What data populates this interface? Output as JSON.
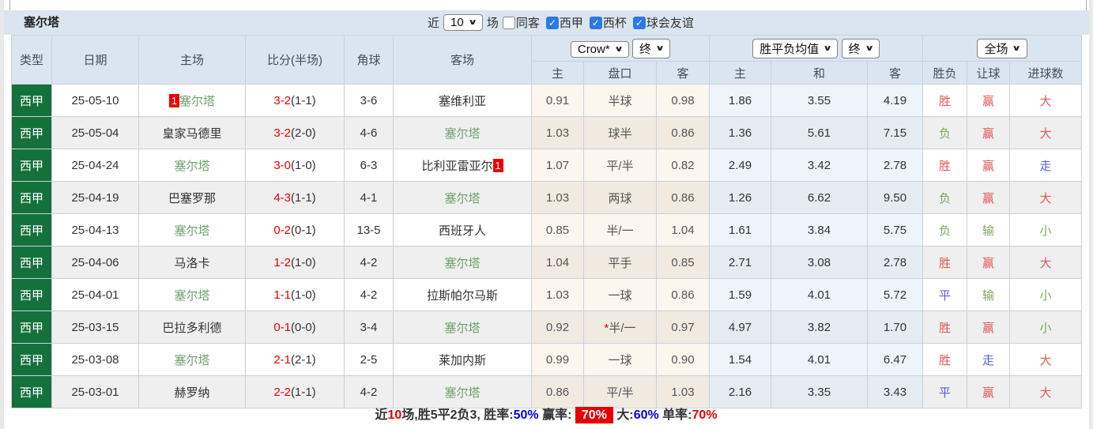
{
  "title": "塞尔塔",
  "controls": {
    "recent_label": "近",
    "recent_count": "10",
    "games_label": "场",
    "checkboxes": [
      {
        "label": "同客",
        "checked": false
      },
      {
        "label": "西甲",
        "checked": true
      },
      {
        "label": "西杯",
        "checked": true
      },
      {
        "label": "球会友谊",
        "checked": true
      }
    ]
  },
  "colors": {
    "league_badge_green": "#15713b",
    "self_team_green": "#6fa06f",
    "score_red": "#e60000",
    "result_red": "#e25757",
    "result_green": "#7da55e",
    "result_blue": "#5b5be4",
    "checkbox_blue": "#2b7ae0",
    "header_bg": "#dbe5ef",
    "handicap_col_bg": "#fbf6ee",
    "europe_col_bg": "#eef5fa"
  },
  "table": {
    "main_headers": [
      "类型",
      "日期",
      "主场",
      "比分(半场)",
      "角球",
      "客场"
    ],
    "selects": {
      "odds_company": "Crow*",
      "odds_time": "终",
      "europe_company": "胜平负均值",
      "europe_time": "终",
      "scope": "全场"
    },
    "sub_headers": [
      "主",
      "盘口",
      "客",
      "主",
      "和",
      "客",
      "胜负",
      "让球",
      "进球数"
    ],
    "rows": [
      {
        "league": "西甲",
        "date": "25-05-10",
        "home": {
          "name": "塞尔塔",
          "is_self": true,
          "badge": "1",
          "badge_pos": "before"
        },
        "score": {
          "full": "3-2",
          "half": "(1-1)"
        },
        "corners": "3-6",
        "away": {
          "name": "塞维利亚",
          "is_self": false
        },
        "odds": {
          "home": "0.91",
          "handicap": "半球",
          "star": false,
          "away": "0.98"
        },
        "europe": {
          "home": "1.86",
          "draw": "3.55",
          "away": "4.19"
        },
        "results": {
          "outcome": {
            "text": "胜",
            "color": "red"
          },
          "handicap": {
            "text": "赢",
            "color": "red"
          },
          "goals": {
            "text": "大",
            "color": "red"
          }
        }
      },
      {
        "league": "西甲",
        "date": "25-05-04",
        "home": {
          "name": "皇家马德里",
          "is_self": false
        },
        "score": {
          "full": "3-2",
          "half": "(2-0)"
        },
        "corners": "4-6",
        "away": {
          "name": "塞尔塔",
          "is_self": true
        },
        "odds": {
          "home": "1.03",
          "handicap": "球半",
          "star": false,
          "away": "0.86"
        },
        "europe": {
          "home": "1.36",
          "draw": "5.61",
          "away": "7.15"
        },
        "results": {
          "outcome": {
            "text": "负",
            "color": "green"
          },
          "handicap": {
            "text": "赢",
            "color": "red"
          },
          "goals": {
            "text": "大",
            "color": "red"
          }
        }
      },
      {
        "league": "西甲",
        "date": "25-04-24",
        "home": {
          "name": "塞尔塔",
          "is_self": true
        },
        "score": {
          "full": "3-0",
          "half": "(1-0)"
        },
        "corners": "6-3",
        "away": {
          "name": "比利亚雷亚尔",
          "is_self": false,
          "badge": "1",
          "badge_pos": "after"
        },
        "odds": {
          "home": "1.07",
          "handicap": "平/半",
          "star": false,
          "away": "0.82"
        },
        "europe": {
          "home": "2.49",
          "draw": "3.42",
          "away": "2.78"
        },
        "results": {
          "outcome": {
            "text": "胜",
            "color": "red"
          },
          "handicap": {
            "text": "赢",
            "color": "red"
          },
          "goals": {
            "text": "走",
            "color": "blue"
          }
        }
      },
      {
        "league": "西甲",
        "date": "25-04-19",
        "home": {
          "name": "巴塞罗那",
          "is_self": false
        },
        "score": {
          "full": "4-3",
          "half": "(1-1)"
        },
        "corners": "4-1",
        "away": {
          "name": "塞尔塔",
          "is_self": true
        },
        "odds": {
          "home": "1.03",
          "handicap": "两球",
          "star": false,
          "away": "0.86"
        },
        "europe": {
          "home": "1.26",
          "draw": "6.62",
          "away": "9.50"
        },
        "results": {
          "outcome": {
            "text": "负",
            "color": "green"
          },
          "handicap": {
            "text": "赢",
            "color": "red"
          },
          "goals": {
            "text": "大",
            "color": "red"
          }
        }
      },
      {
        "league": "西甲",
        "date": "25-04-13",
        "home": {
          "name": "塞尔塔",
          "is_self": true
        },
        "score": {
          "full": "0-2",
          "half": "(0-1)"
        },
        "corners": "13-5",
        "away": {
          "name": "西班牙人",
          "is_self": false
        },
        "odds": {
          "home": "0.85",
          "handicap": "半/一",
          "star": false,
          "away": "1.04"
        },
        "europe": {
          "home": "1.61",
          "draw": "3.84",
          "away": "5.75"
        },
        "results": {
          "outcome": {
            "text": "负",
            "color": "green"
          },
          "handicap": {
            "text": "输",
            "color": "green"
          },
          "goals": {
            "text": "小",
            "color": "green"
          }
        }
      },
      {
        "league": "西甲",
        "date": "25-04-06",
        "home": {
          "name": "马洛卡",
          "is_self": false
        },
        "score": {
          "full": "1-2",
          "half": "(1-0)"
        },
        "corners": "4-2",
        "away": {
          "name": "塞尔塔",
          "is_self": true
        },
        "odds": {
          "home": "1.04",
          "handicap": "平手",
          "star": false,
          "away": "0.85"
        },
        "europe": {
          "home": "2.71",
          "draw": "3.08",
          "away": "2.78"
        },
        "results": {
          "outcome": {
            "text": "胜",
            "color": "red"
          },
          "handicap": {
            "text": "赢",
            "color": "red"
          },
          "goals": {
            "text": "大",
            "color": "red"
          }
        }
      },
      {
        "league": "西甲",
        "date": "25-04-01",
        "home": {
          "name": "塞尔塔",
          "is_self": true
        },
        "score": {
          "full": "1-1",
          "half": "(1-0)"
        },
        "corners": "4-2",
        "away": {
          "name": "拉斯帕尔马斯",
          "is_self": false
        },
        "odds": {
          "home": "1.03",
          "handicap": "一球",
          "star": false,
          "away": "0.86"
        },
        "europe": {
          "home": "1.59",
          "draw": "4.01",
          "away": "5.72"
        },
        "results": {
          "outcome": {
            "text": "平",
            "color": "blue"
          },
          "handicap": {
            "text": "输",
            "color": "green"
          },
          "goals": {
            "text": "小",
            "color": "green"
          }
        }
      },
      {
        "league": "西甲",
        "date": "25-03-15",
        "home": {
          "name": "巴拉多利德",
          "is_self": false
        },
        "score": {
          "full": "0-1",
          "half": "(0-0)"
        },
        "corners": "3-4",
        "away": {
          "name": "塞尔塔",
          "is_self": true
        },
        "odds": {
          "home": "0.92",
          "handicap": "半/一",
          "star": true,
          "away": "0.97"
        },
        "europe": {
          "home": "4.97",
          "draw": "3.82",
          "away": "1.70"
        },
        "results": {
          "outcome": {
            "text": "胜",
            "color": "red"
          },
          "handicap": {
            "text": "赢",
            "color": "red"
          },
          "goals": {
            "text": "小",
            "color": "green"
          }
        }
      },
      {
        "league": "西甲",
        "date": "25-03-08",
        "home": {
          "name": "塞尔塔",
          "is_self": true
        },
        "score": {
          "full": "2-1",
          "half": "(2-1)"
        },
        "corners": "2-5",
        "away": {
          "name": "莱加内斯",
          "is_self": false
        },
        "odds": {
          "home": "0.99",
          "handicap": "一球",
          "star": false,
          "away": "0.90"
        },
        "europe": {
          "home": "1.54",
          "draw": "4.01",
          "away": "6.47"
        },
        "results": {
          "outcome": {
            "text": "胜",
            "color": "red"
          },
          "handicap": {
            "text": "走",
            "color": "blue"
          },
          "goals": {
            "text": "大",
            "color": "red"
          }
        }
      },
      {
        "league": "西甲",
        "date": "25-03-01",
        "home": {
          "name": "赫罗纳",
          "is_self": false
        },
        "score": {
          "full": "2-2",
          "half": "(1-1)"
        },
        "corners": "4-2",
        "away": {
          "name": "塞尔塔",
          "is_self": true
        },
        "odds": {
          "home": "0.86",
          "handicap": "平/半",
          "star": false,
          "away": "1.03"
        },
        "europe": {
          "home": "2.16",
          "draw": "3.35",
          "away": "3.43"
        },
        "results": {
          "outcome": {
            "text": "平",
            "color": "blue"
          },
          "handicap": {
            "text": "赢",
            "color": "red"
          },
          "goals": {
            "text": "大",
            "color": "red"
          }
        }
      }
    ]
  },
  "summary": {
    "segments": [
      {
        "text": "近",
        "style": "plain"
      },
      {
        "text": "10",
        "style": "red"
      },
      {
        "text": "场,胜5平2负3, 胜率:",
        "style": "plain"
      },
      {
        "text": "50%",
        "style": "blue"
      },
      {
        "text": " 赢率: ",
        "style": "plain"
      },
      {
        "text": "70%",
        "style": "badge"
      },
      {
        "text": " 大:",
        "style": "plain"
      },
      {
        "text": "60%",
        "style": "blue"
      },
      {
        "text": " 单率:",
        "style": "plain"
      },
      {
        "text": "70%",
        "style": "red"
      }
    ]
  }
}
